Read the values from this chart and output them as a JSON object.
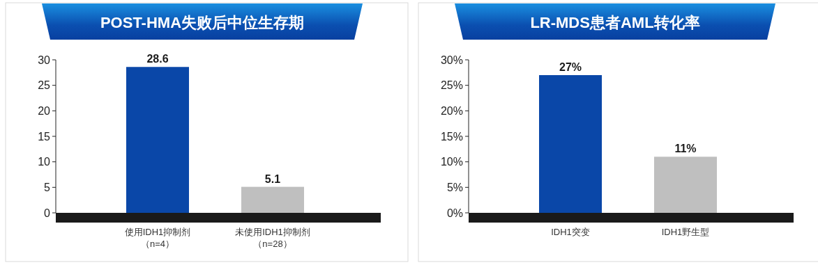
{
  "chart_data": [
    {
      "type": "bar",
      "title": "POST-HMA失败后中位生存期",
      "categories": [
        "使用IDH1抑制剂（n=4）",
        "未使用IDH1抑制剂（n=28）"
      ],
      "values": [
        28.6,
        5.1
      ],
      "colors": [
        "#0a47a8",
        "#bfbfbf"
      ],
      "ylim": [
        0,
        30
      ],
      "yticks": [
        0,
        5,
        10,
        15,
        20,
        25,
        30
      ],
      "data_labels": true,
      "grid": false
    },
    {
      "type": "bar",
      "title": "LR-MDS患者AML转化率",
      "categories": [
        "IDH1突变",
        "IDH1野生型"
      ],
      "values": [
        27,
        11
      ],
      "colors": [
        "#0a47a8",
        "#bfbfbf"
      ],
      "value_labels": [
        "27%",
        "11%"
      ],
      "ylim": [
        0,
        30
      ],
      "yticks": [
        {
          "value": 0,
          "label": "0%"
        },
        {
          "value": 5,
          "label": "5%"
        },
        {
          "value": 10,
          "label": "10%"
        },
        {
          "value": 15,
          "label": "15%"
        },
        {
          "value": 20,
          "label": "20%"
        },
        {
          "value": 25,
          "label": "25%"
        },
        {
          "value": 30,
          "label": "30%"
        }
      ],
      "grid": false
    }
  ]
}
